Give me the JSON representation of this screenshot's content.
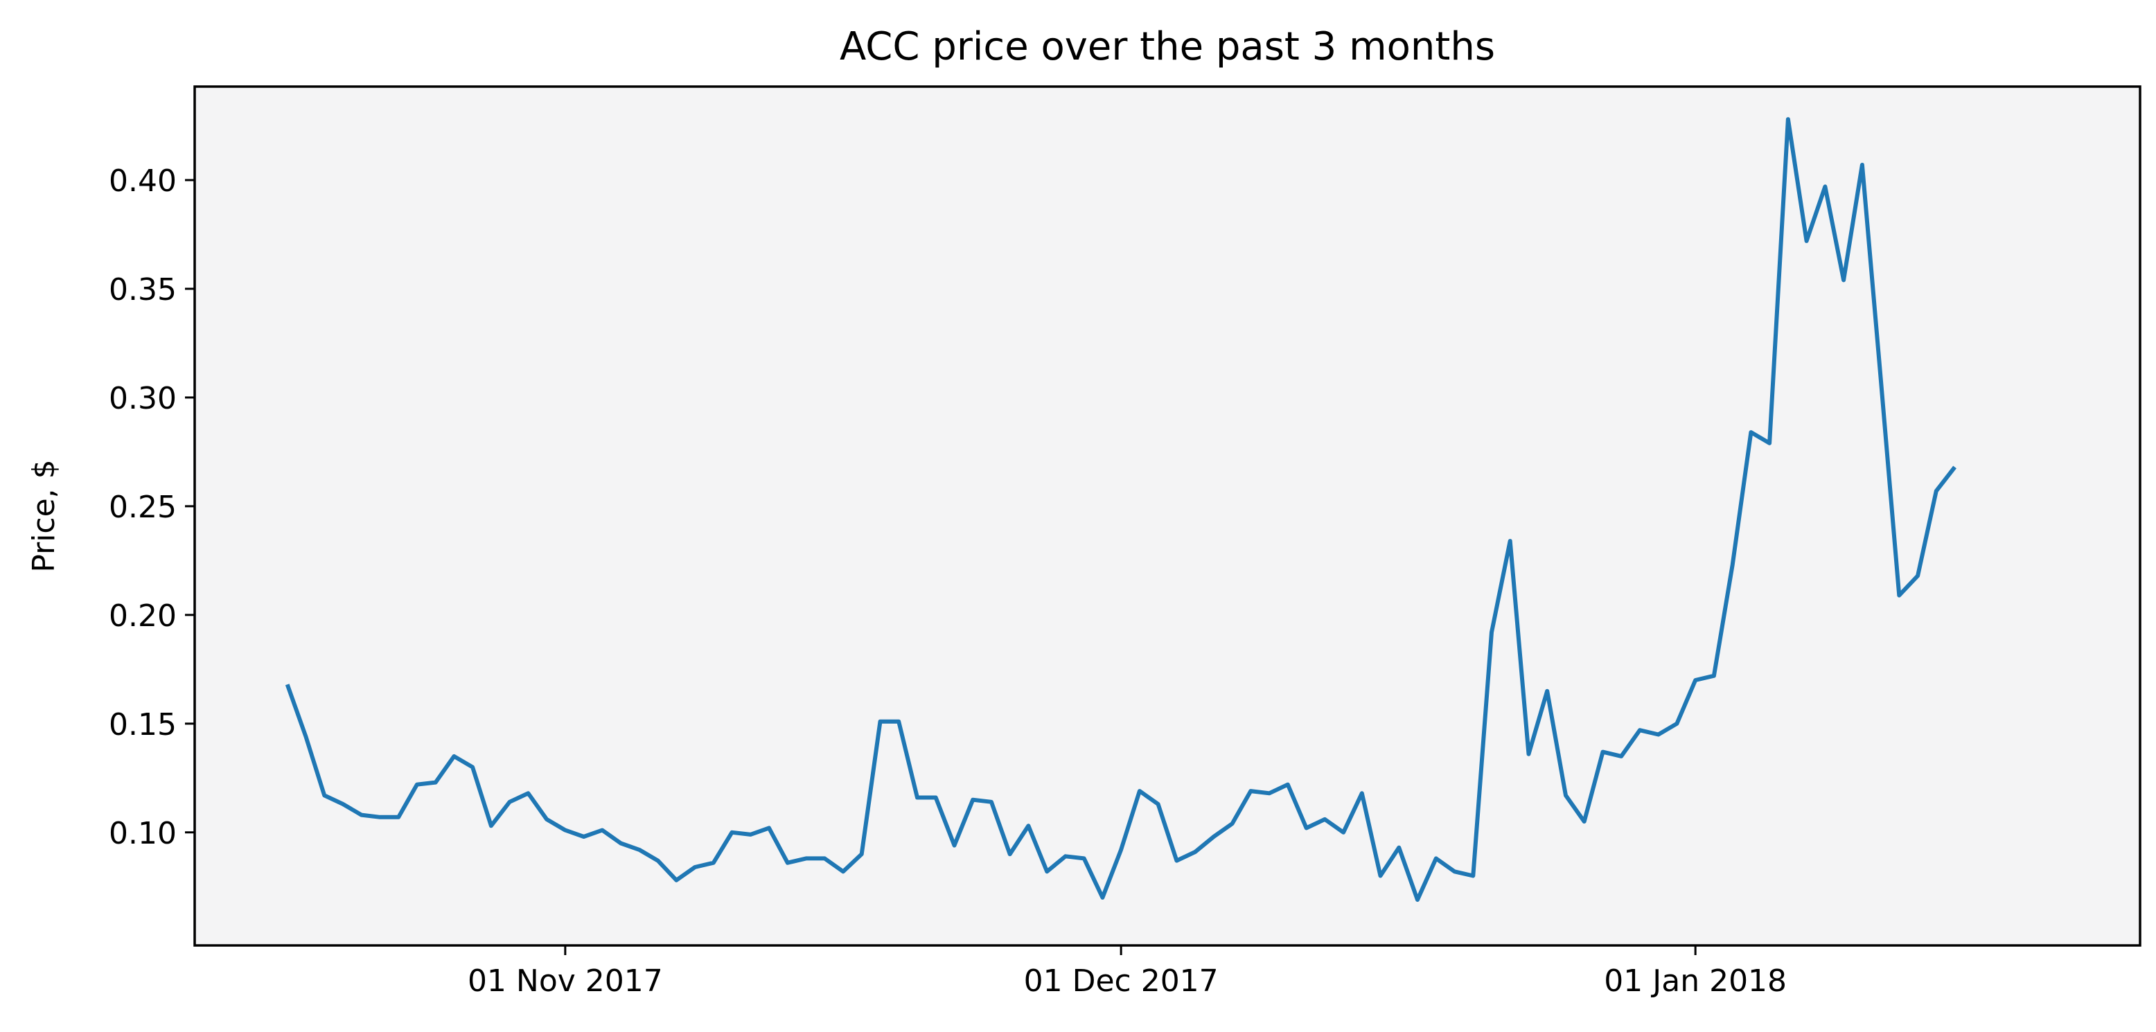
{
  "chart_data": {
    "type": "line",
    "title": "ACC price over the past 3 months",
    "xlabel": "",
    "ylabel": "Price, $",
    "x_start": "2017-10-17",
    "x_end": "2018-01-22",
    "xlim": [
      "2017-10-12",
      "2018-01-25"
    ],
    "ylim": [
      0.048,
      0.443
    ],
    "x_ticks": [
      {
        "date": "2017-11-01",
        "label": "01 Nov 2017"
      },
      {
        "date": "2017-12-01",
        "label": "01 Dec 2017"
      },
      {
        "date": "2018-01-01",
        "label": "01 Jan 2018"
      }
    ],
    "y_ticks": [
      {
        "value": 0.1,
        "label": "0.10"
      },
      {
        "value": 0.15,
        "label": "0.15"
      },
      {
        "value": 0.2,
        "label": "0.20"
      },
      {
        "value": 0.25,
        "label": "0.25"
      },
      {
        "value": 0.3,
        "label": "0.30"
      },
      {
        "value": 0.35,
        "label": "0.35"
      },
      {
        "value": 0.4,
        "label": "0.40"
      }
    ],
    "grid": false,
    "legend": "none",
    "colors": {
      "line": "#1f77b4",
      "plot_background": "#f4f4f5",
      "axes": "#000000"
    },
    "series": [
      {
        "values": [
          0.168,
          0.144,
          0.117,
          0.113,
          0.108,
          0.107,
          0.107,
          0.122,
          0.123,
          0.135,
          0.13,
          0.103,
          0.114,
          0.118,
          0.106,
          0.101,
          0.098,
          0.101,
          0.095,
          0.092,
          0.087,
          0.078,
          0.084,
          0.086,
          0.1,
          0.099,
          0.102,
          0.086,
          0.088,
          0.088,
          0.082,
          0.09,
          0.151,
          0.151,
          0.116,
          0.116,
          0.094,
          0.115,
          0.114,
          0.09,
          0.103,
          0.082,
          0.089,
          0.088,
          0.07,
          0.092,
          0.119,
          0.113,
          0.087,
          0.091,
          0.098,
          0.104,
          0.119,
          0.118,
          0.122,
          0.102,
          0.106,
          0.1,
          0.118,
          0.08,
          0.093,
          0.069,
          0.088,
          0.082,
          0.08,
          0.192,
          0.234,
          0.136,
          0.165,
          0.117,
          0.105,
          0.137,
          0.135,
          0.147,
          0.145,
          0.15,
          0.17,
          0.172,
          0.223,
          0.284,
          0.279,
          0.428,
          0.372,
          0.397,
          0.354,
          0.407,
          0.309,
          0.209,
          0.218,
          0.257,
          0.268
        ]
      }
    ]
  }
}
